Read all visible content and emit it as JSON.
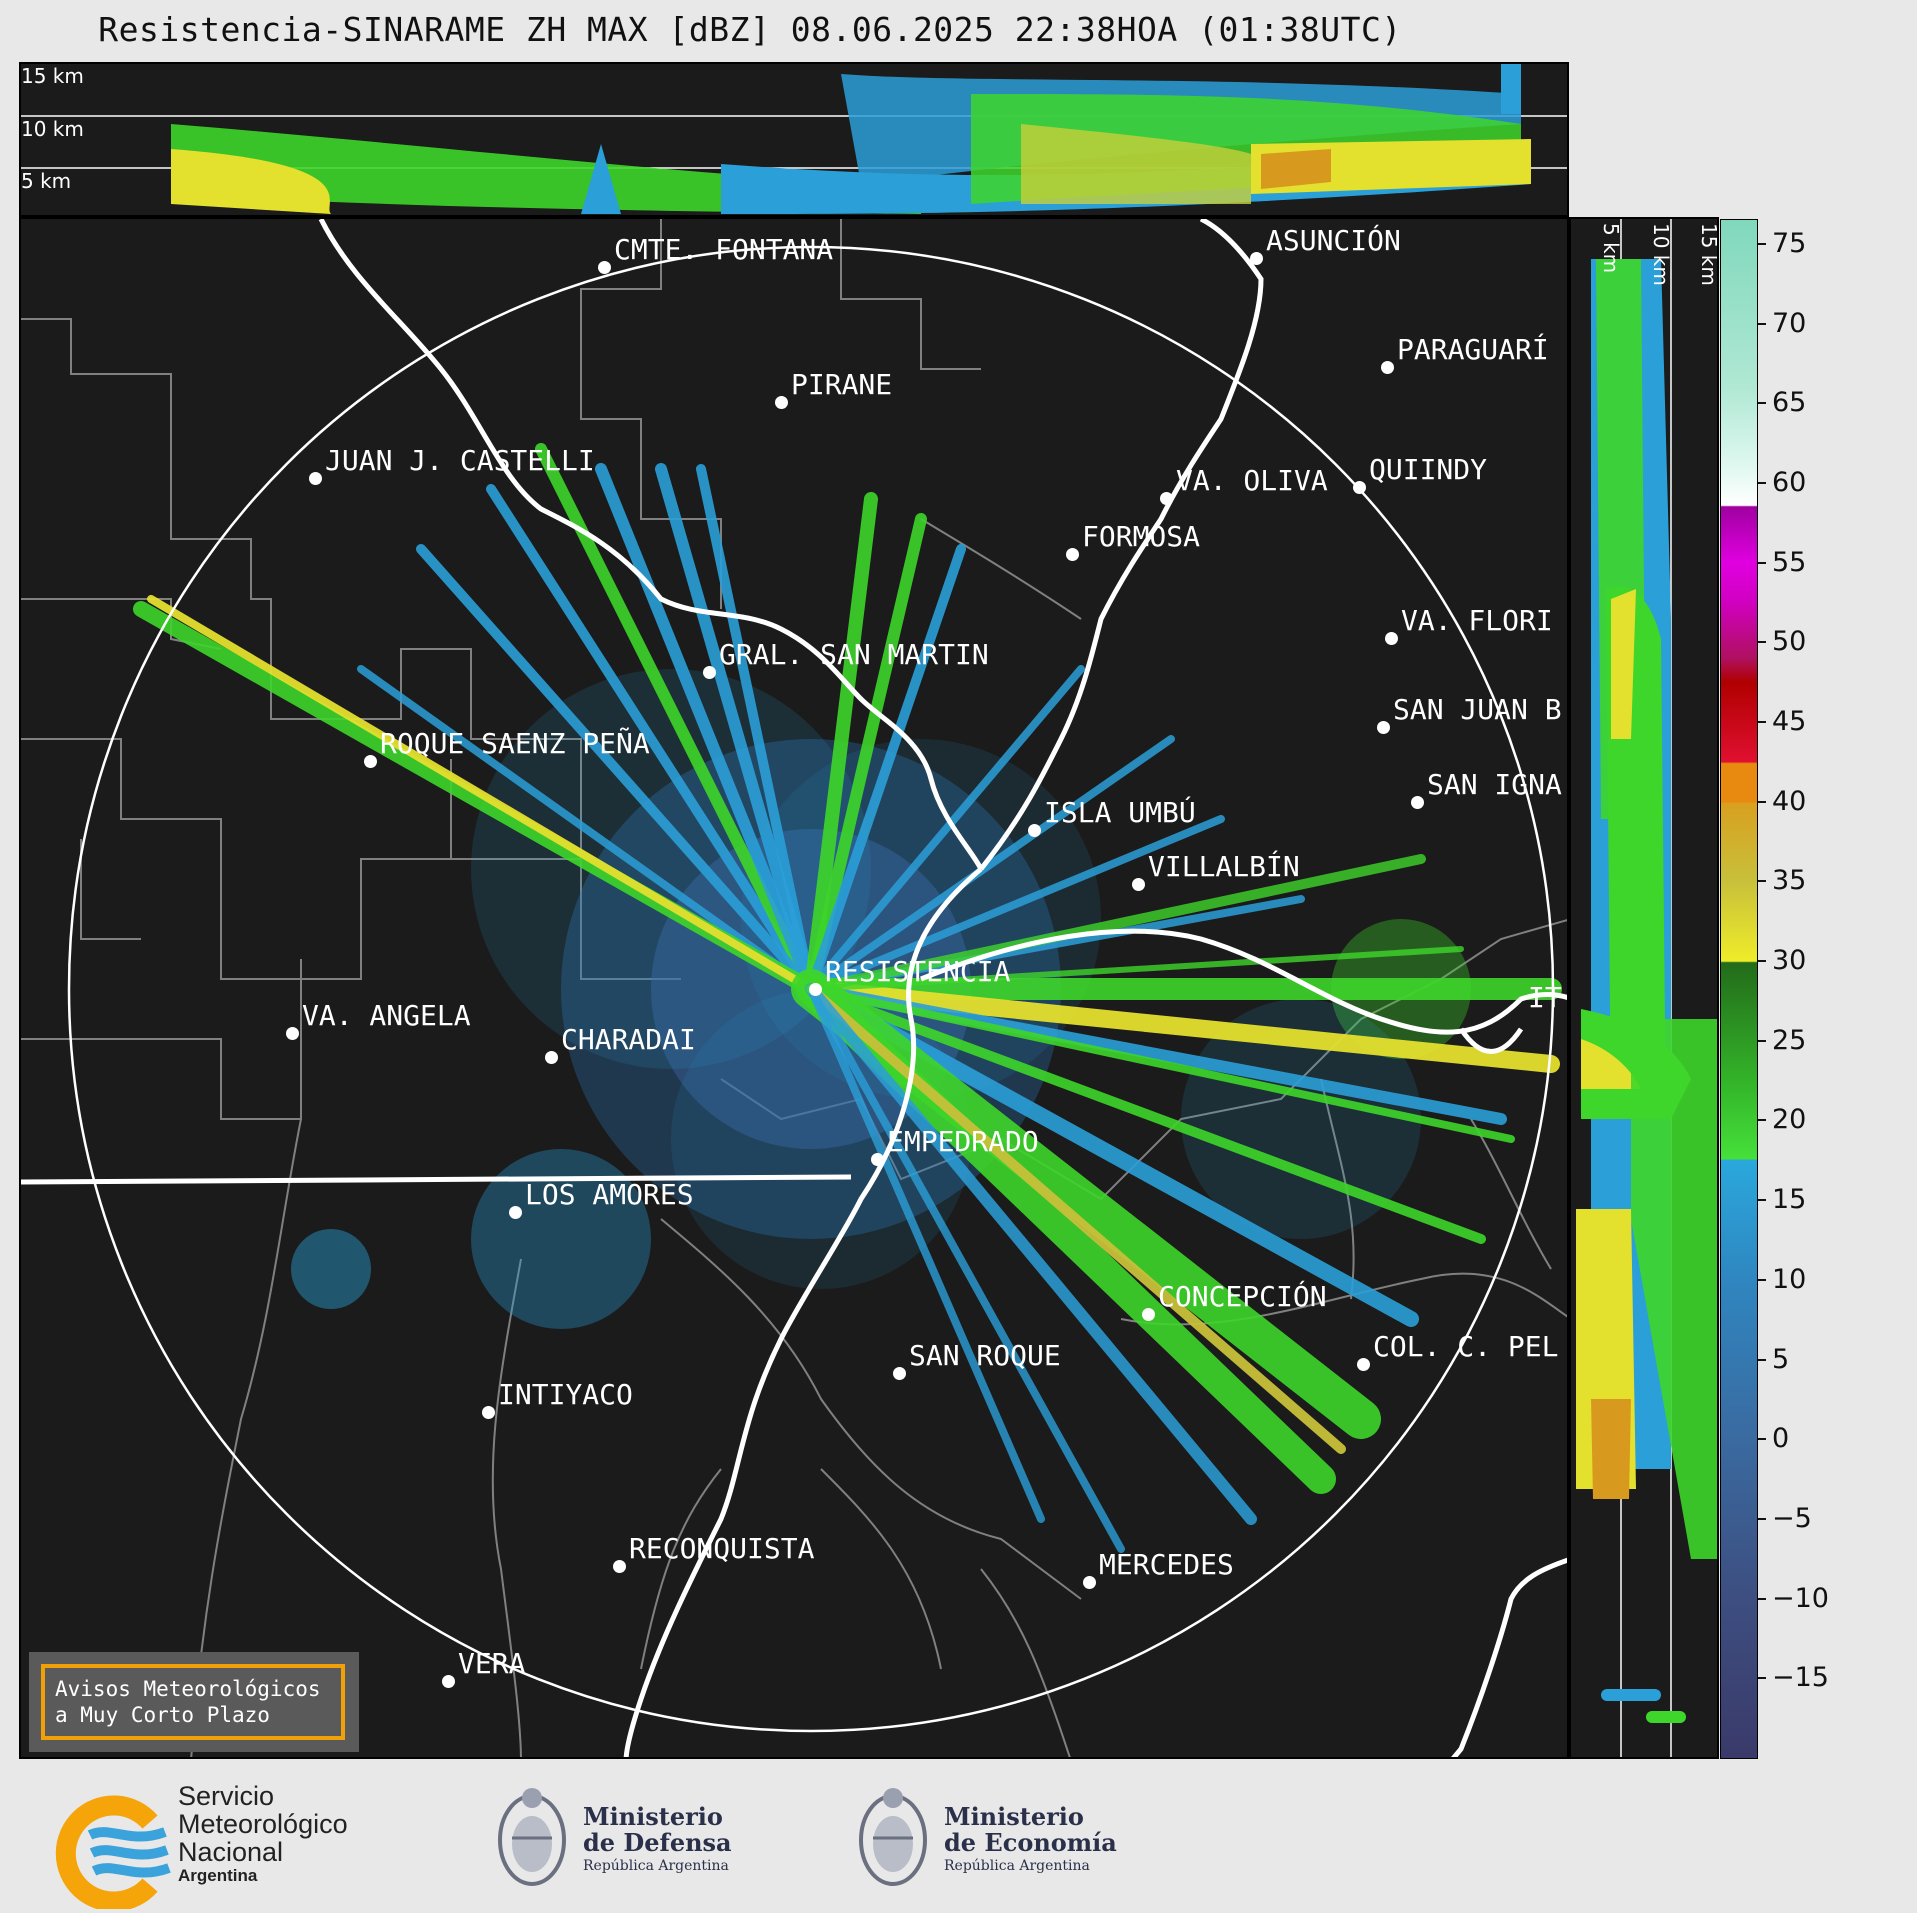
{
  "title": "Resistencia-SINARAME ZH MAX [dBZ] 08.06.2025 22:38HOA (01:38UTC)",
  "top_panel": {
    "alt_labels": [
      "15 km",
      "10 km",
      "5 km"
    ]
  },
  "side_panel": {
    "alt_labels": [
      "5 km",
      "10 km",
      "15 km"
    ]
  },
  "colorbar": {
    "ticks": [
      "75",
      "70",
      "65",
      "60",
      "55",
      "50",
      "45",
      "40",
      "35",
      "30",
      "25",
      "20",
      "15",
      "10",
      "5",
      "0",
      "−5",
      "−10",
      "−15"
    ],
    "range": [
      -20,
      76.5
    ]
  },
  "cities": [
    {
      "id": "cmte-fontana",
      "name": "CMTE. FONTANA"
    },
    {
      "id": "asuncion",
      "name": "ASUNCIÓN"
    },
    {
      "id": "paraguari",
      "name": "PARAGUARÍ"
    },
    {
      "id": "pirane",
      "name": "PIRANE"
    },
    {
      "id": "juan-j-castelli",
      "name": "JUAN J. CASTELLI"
    },
    {
      "id": "va-oliva",
      "name": "VA. OLIVA"
    },
    {
      "id": "quiindy",
      "name": "QUIINDY"
    },
    {
      "id": "formosa",
      "name": "FORMOSA"
    },
    {
      "id": "va-florida",
      "name": "VA. FLORI"
    },
    {
      "id": "gral-san-martin",
      "name": "GRAL. SAN MARTIN"
    },
    {
      "id": "san-juan-b",
      "name": "SAN JUAN B"
    },
    {
      "id": "roque-saenz-pena",
      "name": "ROQUE SAENZ PEÑA"
    },
    {
      "id": "san-ignacio",
      "name": "SAN IGNA"
    },
    {
      "id": "isla-umbu",
      "name": "ISLA UMBÚ"
    },
    {
      "id": "villalbin",
      "name": "VILLALBÍN"
    },
    {
      "id": "resistencia",
      "name": "RESISTENCIA"
    },
    {
      "id": "va-angela",
      "name": "VA. ANGELA"
    },
    {
      "id": "charadai",
      "name": "CHARADAI"
    },
    {
      "id": "ita",
      "name": "IT"
    },
    {
      "id": "empedrado",
      "name": "EMPEDRADO"
    },
    {
      "id": "los-amores",
      "name": "LOS AMORES"
    },
    {
      "id": "concepcion",
      "name": "CONCEPCIÓN"
    },
    {
      "id": "col-c-pel",
      "name": "COL. C. PEL"
    },
    {
      "id": "san-roque",
      "name": "SAN ROQUE"
    },
    {
      "id": "intiyaco",
      "name": "INTIYACO"
    },
    {
      "id": "reconquista",
      "name": "RECONQUISTA"
    },
    {
      "id": "mercedes",
      "name": "MERCEDES"
    },
    {
      "id": "vera",
      "name": "VERA"
    }
  ],
  "alerts_box": {
    "line1": "Avisos Meteorológicos",
    "line2": "a Muy Corto Plazo"
  },
  "footer": {
    "smn": {
      "line1": "Servicio",
      "line2": "Meteorológico",
      "line3": "Nacional",
      "line4": "Argentina"
    },
    "defensa": {
      "line1": "Ministerio",
      "line2": "de Defensa",
      "line3": "República Argentina"
    },
    "economia": {
      "line1": "Ministerio",
      "line2": "de Economía",
      "line3": "República Argentina"
    }
  },
  "colors": {
    "panel_bg": "#1b1b1b",
    "border_white": "#ffffff",
    "province_gray": "#808080",
    "echo_blue": "#2b9fd8",
    "echo_green": "#3ed62a",
    "echo_yellow": "#e4e02e",
    "alerts_border": "#f2a007"
  }
}
